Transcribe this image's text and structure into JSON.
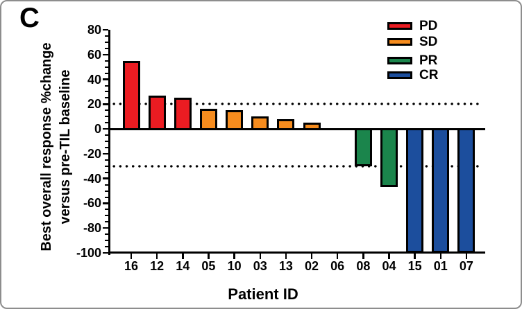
{
  "panel_label": "C",
  "y_axis": {
    "label_line1": "Best overall response %change",
    "label_line2": "versus pre-TIL baseline",
    "ticks": [
      80,
      60,
      40,
      20,
      0,
      -20,
      -40,
      -60,
      -80,
      -100
    ]
  },
  "x_axis": {
    "title": "Patient ID"
  },
  "legend": [
    {
      "label": "PD",
      "color": "#EB1C22"
    },
    {
      "label": "SD",
      "color": "#F68C1E"
    },
    {
      "label": "PR",
      "color": "#1B854C"
    },
    {
      "label": "CR",
      "color": "#1C4E9D"
    }
  ],
  "chart_data": {
    "type": "bar",
    "title": "",
    "xlabel": "Patient ID",
    "ylabel": "Best overall response %change versus pre-TIL baseline",
    "categories": [
      "16",
      "12",
      "14",
      "05",
      "10",
      "03",
      "13",
      "02",
      "06",
      "08",
      "04",
      "15",
      "01",
      "07"
    ],
    "values": [
      55,
      27,
      25,
      16,
      15,
      10,
      8,
      5,
      0,
      -30,
      -47,
      -100,
      -100,
      -100
    ],
    "groups": [
      "PD",
      "PD",
      "PD",
      "SD",
      "SD",
      "SD",
      "SD",
      "SD",
      "SD",
      "PR",
      "PR",
      "CR",
      "CR",
      "CR"
    ],
    "group_colors": {
      "PD": "#EB1C22",
      "SD": "#F68C1E",
      "PR": "#1B854C",
      "CR": "#1C4E9D"
    },
    "thresholds": [
      20,
      -30
    ],
    "ylim": [
      -100,
      80
    ],
    "y_major_step": 20,
    "y_minor_step": 5,
    "grid": false,
    "legend_position": "top-right"
  }
}
